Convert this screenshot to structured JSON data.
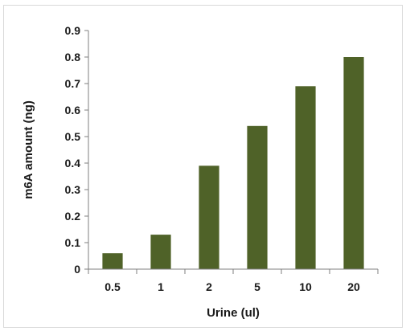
{
  "chart_data": {
    "type": "bar",
    "categories": [
      "0.5",
      "1",
      "2",
      "5",
      "10",
      "20"
    ],
    "values": [
      0.06,
      0.13,
      0.39,
      0.54,
      0.69,
      0.8
    ],
    "xlabel": "Urine (ul)",
    "ylabel": "m6A amount (ng)",
    "ylim": [
      0,
      0.9
    ],
    "yticks": [
      "0",
      "0.1",
      "0.2",
      "0.3",
      "0.4",
      "0.5",
      "0.6",
      "0.7",
      "0.8",
      "0.9"
    ],
    "grid": false,
    "legend": "none",
    "bar_color": "#4f6228"
  }
}
